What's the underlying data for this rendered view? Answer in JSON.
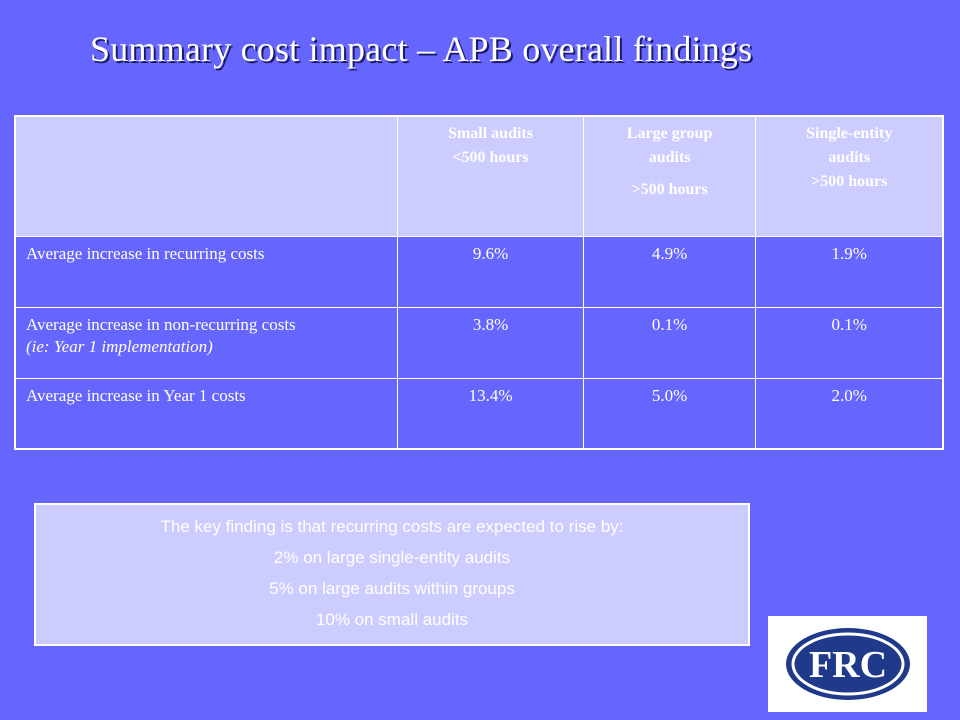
{
  "slide": {
    "title": "Summary cost impact – APB overall findings"
  },
  "table": {
    "headers": [
      {
        "lines": []
      },
      {
        "lines": [
          "Small audits",
          "<500 hours"
        ]
      },
      {
        "lines": [
          "Large group",
          "audits",
          ">500 hours"
        ]
      },
      {
        "lines": [
          "Single-entity",
          "audits",
          ">500 hours"
        ]
      }
    ],
    "rows": [
      {
        "label": "Average increase in recurring costs",
        "sublabel": "",
        "values": [
          "9.6%",
          "4.9%",
          "1.9%"
        ]
      },
      {
        "label": "Average increase in non-recurring costs",
        "sublabel": "(ie: Year 1 implementation)",
        "values": [
          "3.8%",
          "0.1%",
          "0.1%"
        ]
      },
      {
        "label": "Average increase in Year 1 costs",
        "sublabel": "",
        "values": [
          "13.4%",
          "5.0%",
          "2.0%"
        ]
      }
    ]
  },
  "finding": {
    "lines": [
      "The key finding is that recurring costs are expected to rise by:",
      "2% on large single-entity audits",
      "5% on large audits within groups",
      "10% on small audits"
    ]
  },
  "logo": {
    "text": "FRC",
    "color": "#1f3a8a"
  },
  "colors": {
    "background": "#6666ff",
    "header_fill": "#ccccff",
    "title_shadow": "#1a1a66"
  }
}
